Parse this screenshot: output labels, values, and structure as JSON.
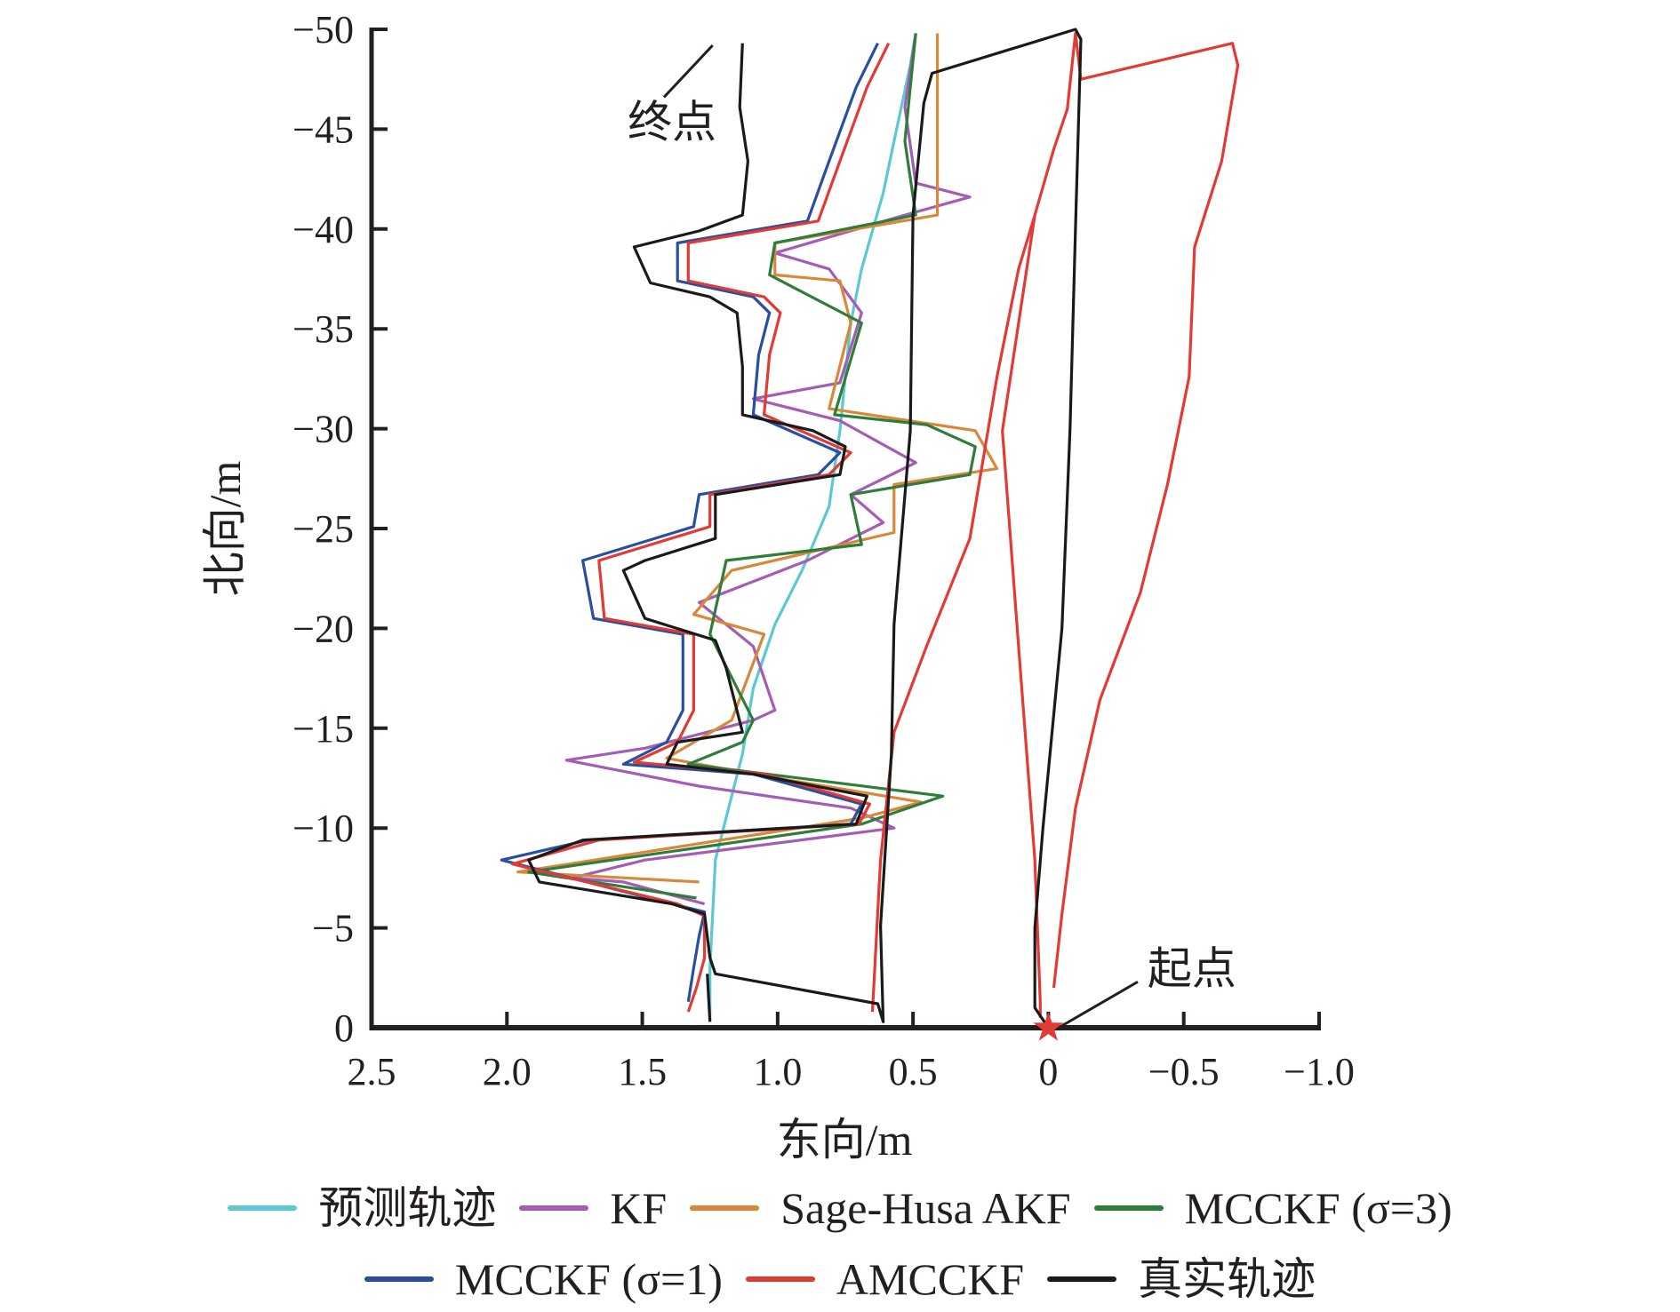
{
  "chart_data": {
    "type": "line",
    "xlabel": "东向/m",
    "ylabel": "北向/m",
    "xlim": [
      2.5,
      -1.0
    ],
    "ylim": [
      -50,
      0
    ],
    "x_ticks": [
      2.5,
      2.0,
      1.5,
      1.0,
      0.5,
      0,
      -0.5,
      -1.0
    ],
    "x_tick_labels": [
      "2.5",
      "2.0",
      "1.5",
      "1.0",
      "0.5",
      "0",
      "−0.5",
      "−1.0"
    ],
    "y_ticks": [
      -50,
      -45,
      -40,
      -35,
      -30,
      -25,
      -20,
      -15,
      -10,
      -5,
      0
    ],
    "y_tick_labels": [
      "−50",
      "−45",
      "−40",
      "−35",
      "−30",
      "−25",
      "−20",
      "−15",
      "−10",
      "−5",
      "0"
    ],
    "grid": false,
    "legend_position": "bottom",
    "annotations": [
      {
        "text": "终点",
        "text_at": [
          1.39,
          -44.6
        ],
        "line": [
          [
            1.42,
            -46.6
          ],
          [
            1.24,
            -49.2
          ]
        ]
      },
      {
        "text": "起点",
        "text_at": [
          -0.53,
          -2.2
        ],
        "line": [
          [
            -0.33,
            -2.3
          ],
          [
            -0.05,
            -0.1
          ]
        ]
      }
    ],
    "start_marker": {
      "at": [
        0,
        0
      ],
      "color": "#e23a35",
      "shape": "star"
    },
    "series": [
      {
        "name": "预测轨迹",
        "color": "#5cc8d2",
        "paths": [
          [
            [
              1.25,
              -0.4
            ],
            [
              1.25,
              -3
            ],
            [
              1.23,
              -8.4
            ],
            [
              1.17,
              -11.6
            ],
            [
              1.13,
              -13.7
            ],
            [
              1.09,
              -17
            ],
            [
              1.01,
              -20.2
            ],
            [
              0.91,
              -22.9
            ],
            [
              0.81,
              -26.1
            ],
            [
              0.77,
              -29.9
            ],
            [
              0.73,
              -35.3
            ],
            [
              0.69,
              -38
            ],
            [
              0.61,
              -41.8
            ],
            [
              0.57,
              -44.4
            ],
            [
              0.51,
              -48.2
            ],
            [
              0.49,
              -49.8
            ]
          ]
        ]
      },
      {
        "name": "KF",
        "color": "#a45db5",
        "paths": [
          [
            [
              1.27,
              -6.2
            ],
            [
              1.57,
              -7.3
            ],
            [
              1.76,
              -7.5
            ],
            [
              1.49,
              -8.4
            ],
            [
              0.57,
              -10
            ],
            [
              0.73,
              -11
            ],
            [
              1.29,
              -12.1
            ],
            [
              1.78,
              -13.4
            ],
            [
              1.49,
              -14
            ],
            [
              1.09,
              -15.4
            ],
            [
              1.01,
              -15.9
            ],
            [
              1.09,
              -19.1
            ],
            [
              1.29,
              -21.3
            ],
            [
              0.89,
              -23.4
            ],
            [
              0.61,
              -25.3
            ],
            [
              0.73,
              -26.7
            ],
            [
              0.49,
              -28.3
            ],
            [
              0.77,
              -30.4
            ],
            [
              1.09,
              -31.5
            ],
            [
              0.77,
              -32.3
            ],
            [
              0.69,
              -35.8
            ],
            [
              0.81,
              -38
            ],
            [
              1.01,
              -38.8
            ],
            [
              0.53,
              -40.7
            ],
            [
              0.29,
              -41.6
            ],
            [
              0.49,
              -42.3
            ],
            [
              0.53,
              -46.1
            ],
            [
              0.49,
              -49.8
            ]
          ]
        ]
      },
      {
        "name": "Sage-Husa AKF",
        "color": "#d9883a",
        "paths": [
          [
            [
              1.29,
              -7.3
            ],
            [
              1.96,
              -7.8
            ],
            [
              0.69,
              -10.5
            ],
            [
              0.47,
              -11.3
            ],
            [
              1.09,
              -12.7
            ],
            [
              1.41,
              -13.5
            ],
            [
              1.17,
              -15.4
            ],
            [
              1.05,
              -19.7
            ],
            [
              1.31,
              -20.7
            ],
            [
              1.17,
              -22.9
            ],
            [
              0.57,
              -24.8
            ],
            [
              0.57,
              -27.2
            ],
            [
              0.19,
              -28
            ],
            [
              0.27,
              -29.9
            ],
            [
              0.81,
              -31
            ],
            [
              0.73,
              -35.3
            ],
            [
              0.77,
              -37.4
            ],
            [
              1.01,
              -37.7
            ],
            [
              1.01,
              -39.3
            ],
            [
              0.41,
              -40.7
            ],
            [
              0.41,
              -46.1
            ],
            [
              0.41,
              -49.8
            ]
          ]
        ]
      },
      {
        "name": "MCCKF (σ=3)",
        "color": "#2e7d3a",
        "paths": [
          [
            [
              1.3,
              -6.5
            ],
            [
              1.92,
              -7.8
            ],
            [
              0.69,
              -10.2
            ],
            [
              0.39,
              -11.6
            ],
            [
              1.33,
              -13.2
            ],
            [
              1.13,
              -14.3
            ],
            [
              1.09,
              -15.4
            ],
            [
              1.25,
              -19.7
            ],
            [
              1.19,
              -23.4
            ],
            [
              0.69,
              -24.2
            ],
            [
              0.73,
              -26.7
            ],
            [
              0.29,
              -27.7
            ],
            [
              0.27,
              -29.1
            ],
            [
              0.45,
              -30.2
            ],
            [
              0.79,
              -30.7
            ],
            [
              0.69,
              -35.3
            ],
            [
              1.03,
              -37.7
            ],
            [
              1.01,
              -39.3
            ],
            [
              0.49,
              -40.7
            ],
            [
              0.53,
              -44.4
            ],
            [
              0.49,
              -49.8
            ]
          ]
        ]
      },
      {
        "name": "MCCKF (σ=1)",
        "color": "#2a4ea0",
        "paths": [
          [
            [
              1.33,
              -1.3
            ],
            [
              1.31,
              -3
            ],
            [
              1.29,
              -4.6
            ],
            [
              1.27,
              -5.8
            ],
            [
              1.39,
              -6.2
            ],
            [
              2.02,
              -8.4
            ],
            [
              1.7,
              -9.4
            ],
            [
              0.73,
              -10.2
            ],
            [
              0.69,
              -11.2
            ],
            [
              1.09,
              -12.7
            ],
            [
              1.57,
              -13.2
            ],
            [
              1.41,
              -14.3
            ],
            [
              1.35,
              -15.9
            ],
            [
              1.35,
              -19.7
            ],
            [
              1.68,
              -20.5
            ],
            [
              1.72,
              -23.4
            ],
            [
              1.31,
              -25.1
            ],
            [
              1.29,
              -26.7
            ],
            [
              0.85,
              -27.7
            ],
            [
              0.77,
              -28.8
            ],
            [
              1.09,
              -30.7
            ],
            [
              1.07,
              -33.7
            ],
            [
              1.03,
              -35.8
            ],
            [
              1.09,
              -36.6
            ],
            [
              1.37,
              -37.4
            ],
            [
              1.37,
              -39.3
            ],
            [
              0.89,
              -40.4
            ],
            [
              0.81,
              -43.4
            ],
            [
              0.71,
              -47.1
            ],
            [
              0.63,
              -49.3
            ]
          ]
        ]
      },
      {
        "name": "AMCCKF",
        "color": "#e23a35",
        "paths": [
          [
            [
              0.65,
              -0.8
            ],
            [
              0.62,
              -8.4
            ],
            [
              0.57,
              -14.8
            ],
            [
              0.45,
              -19.1
            ],
            [
              0.29,
              -24.5
            ],
            [
              0.19,
              -32.6
            ],
            [
              0.11,
              -38
            ],
            [
              0.05,
              -40.7
            ],
            [
              -0.02,
              -44
            ],
            [
              -0.07,
              -46
            ],
            [
              -0.1,
              -49.8
            ],
            [
              -0.12,
              -47.5
            ],
            [
              -0.68,
              -49.3
            ],
            [
              -0.7,
              -48.2
            ],
            [
              -0.64,
              -43.4
            ],
            [
              -0.54,
              -39.1
            ],
            [
              -0.52,
              -32.6
            ],
            [
              -0.44,
              -27.2
            ],
            [
              -0.34,
              -21.8
            ],
            [
              -0.19,
              -16.4
            ],
            [
              -0.1,
              -11
            ],
            [
              -0.05,
              -5.7
            ],
            [
              -0.02,
              -2
            ]
          ],
          [
            [
              0.03,
              -0.5
            ],
            [
              0.03,
              -1.3
            ],
            [
              0.05,
              -8.4
            ],
            [
              0.11,
              -19.1
            ],
            [
              0.17,
              -29.9
            ],
            [
              0.05,
              -40.7
            ]
          ],
          [
            [
              1.33,
              -0.8
            ],
            [
              1.3,
              -2
            ],
            [
              1.27,
              -3.5
            ],
            [
              1.27,
              -5.6
            ],
            [
              1.37,
              -6.2
            ],
            [
              1.98,
              -8.2
            ],
            [
              1.66,
              -9.4
            ],
            [
              0.7,
              -10.2
            ],
            [
              0.66,
              -11.2
            ],
            [
              1.05,
              -12.7
            ],
            [
              1.53,
              -13.3
            ],
            [
              1.37,
              -14.3
            ],
            [
              1.31,
              -15.9
            ],
            [
              1.31,
              -19.7
            ],
            [
              1.64,
              -20.5
            ],
            [
              1.66,
              -23.4
            ],
            [
              1.25,
              -25.1
            ],
            [
              1.25,
              -26.7
            ],
            [
              0.81,
              -27.7
            ],
            [
              0.73,
              -28.8
            ],
            [
              1.05,
              -30.7
            ],
            [
              1.03,
              -33.7
            ],
            [
              0.99,
              -35.8
            ],
            [
              1.05,
              -36.6
            ],
            [
              1.33,
              -37.4
            ],
            [
              1.33,
              -39.3
            ],
            [
              0.85,
              -40.4
            ],
            [
              0.77,
              -43.4
            ],
            [
              0.67,
              -47.1
            ],
            [
              0.59,
              -49.3
            ]
          ]
        ]
      },
      {
        "name": "真实轨迹",
        "color": "#1a1a1a",
        "paths": [
          [
            [
              0,
              0
            ],
            [
              0.05,
              -1
            ],
            [
              0.05,
              -5
            ],
            [
              0.02,
              -10
            ],
            [
              -0.05,
              -20
            ],
            [
              -0.08,
              -30
            ],
            [
              -0.1,
              -40
            ],
            [
              -0.12,
              -49.5
            ],
            [
              -0.1,
              -50
            ],
            [
              0.43,
              -47.8
            ],
            [
              0.46,
              -46.3
            ],
            [
              0.5,
              -40.7
            ],
            [
              0.51,
              -29.9
            ],
            [
              0.57,
              -20.2
            ],
            [
              0.58,
              -13.7
            ],
            [
              0.62,
              -5.1
            ],
            [
              0.61,
              -0.3
            ],
            [
              0.63,
              -1.2
            ],
            [
              1.23,
              -2.7
            ],
            [
              1.25,
              -3.5
            ],
            [
              1.27,
              -5.7
            ],
            [
              1.39,
              -6.2
            ],
            [
              1.88,
              -7.3
            ],
            [
              1.92,
              -8.4
            ],
            [
              1.72,
              -9.4
            ],
            [
              0.71,
              -10.2
            ],
            [
              0.67,
              -11.6
            ],
            [
              1.09,
              -12.7
            ],
            [
              1.41,
              -13.2
            ],
            [
              1.37,
              -14.3
            ],
            [
              1.13,
              -14.8
            ],
            [
              1.19,
              -18
            ],
            [
              1.23,
              -19.4
            ],
            [
              1.49,
              -20.5
            ],
            [
              1.57,
              -22.9
            ],
            [
              1.49,
              -23.4
            ],
            [
              1.23,
              -24.5
            ],
            [
              1.23,
              -26.7
            ],
            [
              0.77,
              -27.7
            ],
            [
              0.75,
              -29.1
            ],
            [
              0.87,
              -29.9
            ],
            [
              1.13,
              -30.7
            ],
            [
              1.13,
              -33.1
            ],
            [
              1.15,
              -35.8
            ],
            [
              1.25,
              -36.6
            ],
            [
              1.47,
              -37.3
            ],
            [
              1.53,
              -39.1
            ],
            [
              1.29,
              -39.9
            ],
            [
              1.13,
              -40.7
            ],
            [
              1.11,
              -43.4
            ],
            [
              1.14,
              -46.1
            ],
            [
              1.13,
              -49.3
            ]
          ],
          [
            [
              1.25,
              -0.3
            ],
            [
              1.26,
              -2.7
            ]
          ]
        ]
      }
    ]
  }
}
